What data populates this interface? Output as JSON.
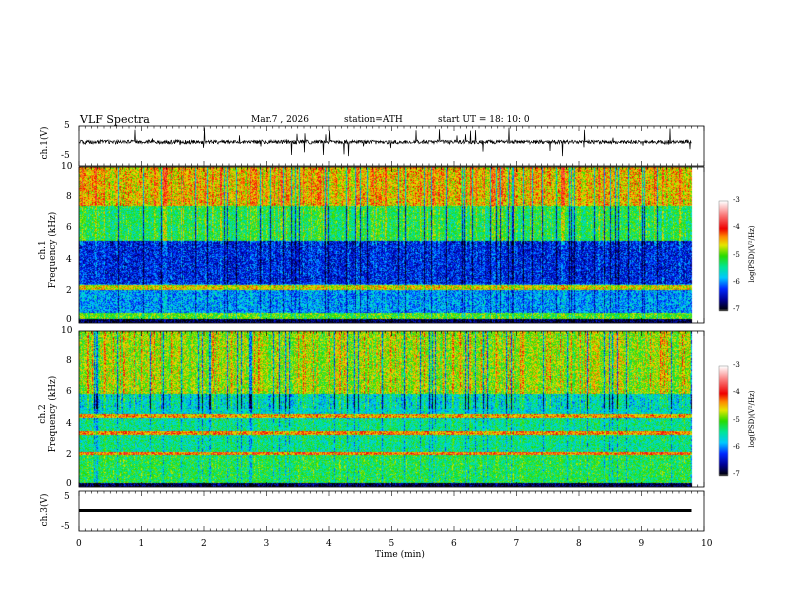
{
  "header": {
    "title": "VLF  Spectra",
    "date": "Mar.7  , 2026",
    "station": "station=ATH",
    "start": "start  UT  =    18: 10: 0"
  },
  "chart_data": [
    {
      "type": "line",
      "name": "ch1-waveform",
      "ylabel": "ch.1(V)",
      "ylim": [
        -5,
        5
      ],
      "yticks": [
        "5",
        "-5"
      ],
      "xlim": [
        0,
        10
      ],
      "data_end_min": 9.8,
      "description_level": 0
    },
    {
      "type": "heatmap",
      "name": "ch1-spectrogram",
      "ylabel": "ch.1\nFrequency  (kHz)",
      "ylabel1": "ch.1",
      "ylabel2": "Frequency  (kHz)",
      "ylim": [
        0,
        10
      ],
      "yticks": [
        "0",
        "2",
        "4",
        "6",
        "8",
        "10"
      ],
      "xlim": [
        0,
        10
      ],
      "data_end_min": 9.8,
      "colorbar": {
        "label": "log(PSD)(V²/Hz)",
        "range": [
          -7,
          -3
        ],
        "ticks": [
          "-3",
          "-4",
          "-5",
          "-6",
          "-7"
        ]
      }
    },
    {
      "type": "heatmap",
      "name": "ch2-spectrogram",
      "ylabel1": "ch.2",
      "ylabel2": "Frequency  (kHz)",
      "ylim": [
        0,
        10
      ],
      "yticks": [
        "0",
        "2",
        "4",
        "6",
        "8",
        "10"
      ],
      "xlim": [
        0,
        10
      ],
      "data_end_min": 9.8,
      "colorbar": {
        "label": "log(PSD)(V²/Hz)",
        "range": [
          -7,
          -3
        ],
        "ticks": [
          "-3",
          "-4",
          "-5",
          "-6",
          "-7"
        ]
      }
    },
    {
      "type": "line",
      "name": "ch3-waveform",
      "ylabel": "ch.3(V)",
      "ylim": [
        -5,
        5
      ],
      "yticks": [
        "5",
        "-5"
      ],
      "xlim": [
        0,
        10
      ],
      "level": -1.2
    }
  ],
  "xaxis": {
    "label": "Time  (min)",
    "ticks": [
      "0",
      "1",
      "2",
      "3",
      "4",
      "5",
      "6",
      "7",
      "8",
      "9",
      "10"
    ]
  }
}
